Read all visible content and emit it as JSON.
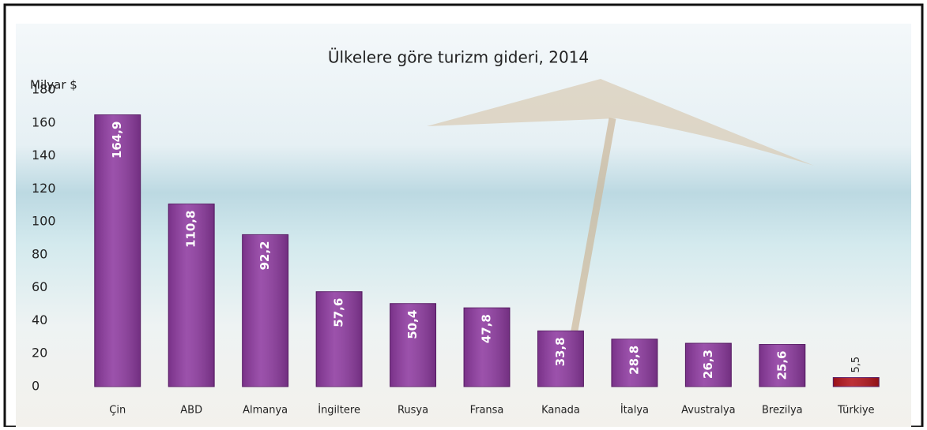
{
  "chart_data": {
    "type": "bar",
    "title": "Ülkelere göre turizm gideri, 2014",
    "y_label": "Milyar $",
    "categories": [
      "Çin",
      "ABD",
      "Almanya",
      "İngiltere",
      "Rusya",
      "Fransa",
      "Kanada",
      "İtalya",
      "Avustralya",
      "Brezilya",
      "Türkiye"
    ],
    "values": [
      164.9,
      110.8,
      92.2,
      57.6,
      50.4,
      47.8,
      33.8,
      28.8,
      26.3,
      25.6,
      5.5
    ],
    "value_labels": [
      "164,9",
      "110,8",
      "92,2",
      "57,6",
      "50,4",
      "47,8",
      "33,8",
      "28,8",
      "26,3",
      "25,6",
      "5,5"
    ],
    "colors": [
      "#8e3aa0",
      "#8e3aa0",
      "#8e3aa0",
      "#8e3aa0",
      "#8e3aa0",
      "#8e3aa0",
      "#8e3aa0",
      "#8e3aa0",
      "#8e3aa0",
      "#8e3aa0",
      "#b3141c"
    ],
    "ylim": [
      0,
      180
    ],
    "yticks": [
      0,
      20,
      40,
      60,
      80,
      100,
      120,
      140,
      160,
      180
    ],
    "grid": false
  }
}
